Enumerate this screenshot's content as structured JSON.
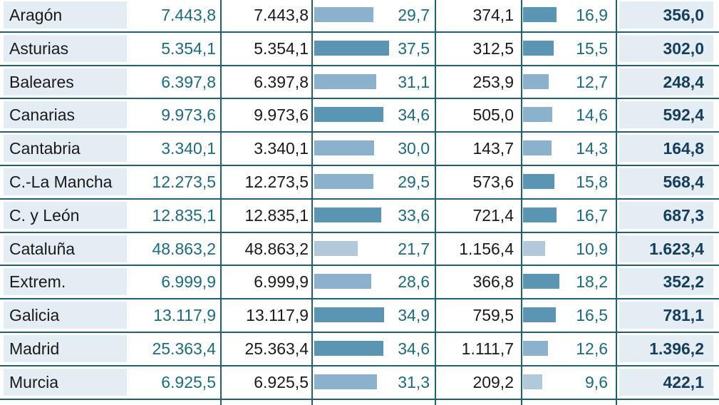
{
  "colors": {
    "rule": "#1f6075",
    "name_cell_bg": "#e4edf3",
    "bar_light": "#b2c9da",
    "bar_mid": "#8cb1cc",
    "bar_dark": "#5a96b4",
    "value_accent": "#1c6b7e",
    "total_text": "#163e5c"
  },
  "chart_data": {
    "type": "table",
    "columns": [
      "",
      "",
      "",
      "",
      "",
      "",
      ""
    ],
    "rows": [
      {
        "region": "Aragón",
        "v1": "7.443,8",
        "v2": "7.443,8",
        "pct1": 29.7,
        "pct1_label": "29,7",
        "v3": "374,1",
        "pct2": 16.9,
        "pct2_label": "16,9",
        "total": "356,0"
      },
      {
        "region": "Asturias",
        "v1": "5.354,1",
        "v2": "5.354,1",
        "pct1": 37.5,
        "pct1_label": "37,5",
        "v3": "312,5",
        "pct2": 15.5,
        "pct2_label": "15,5",
        "total": "302,0"
      },
      {
        "region": "Baleares",
        "v1": "6.397,8",
        "v2": "6.397,8",
        "pct1": 31.1,
        "pct1_label": "31,1",
        "v3": "253,9",
        "pct2": 12.7,
        "pct2_label": "12,7",
        "total": "248,4"
      },
      {
        "region": "Canarias",
        "v1": "9.973,6",
        "v2": "9.973,6",
        "pct1": 34.6,
        "pct1_label": "34,6",
        "v3": "505,0",
        "pct2": 14.6,
        "pct2_label": "14,6",
        "total": "592,4"
      },
      {
        "region": "Cantabria",
        "v1": "3.340,1",
        "v2": "3.340,1",
        "pct1": 30.0,
        "pct1_label": "30,0",
        "v3": "143,7",
        "pct2": 14.3,
        "pct2_label": "14,3",
        "total": "164,8"
      },
      {
        "region": "C.-La Mancha",
        "v1": "12.273,5",
        "v2": "12.273,5",
        "pct1": 29.5,
        "pct1_label": "29,5",
        "v3": "573,6",
        "pct2": 15.8,
        "pct2_label": "15,8",
        "total": "568,4"
      },
      {
        "region": "C. y León",
        "v1": "12.835,1",
        "v2": "12.835,1",
        "pct1": 33.6,
        "pct1_label": "33,6",
        "v3": "721,4",
        "pct2": 16.7,
        "pct2_label": "16,7",
        "total": "687,3"
      },
      {
        "region": "Cataluña",
        "v1": "48.863,2",
        "v2": "48.863,2",
        "pct1": 21.7,
        "pct1_label": "21,7",
        "v3": "1.156,4",
        "pct2": 10.9,
        "pct2_label": "10,9",
        "total": "1.623,4"
      },
      {
        "region": "Extrem.",
        "v1": "6.999,9",
        "v2": "6.999,9",
        "pct1": 28.6,
        "pct1_label": "28,6",
        "v3": "366,8",
        "pct2": 18.2,
        "pct2_label": "18,2",
        "total": "352,2"
      },
      {
        "region": "Galicia",
        "v1": "13.117,9",
        "v2": "13.117,9",
        "pct1": 34.9,
        "pct1_label": "34,9",
        "v3": "759,5",
        "pct2": 16.5,
        "pct2_label": "16,5",
        "total": "781,1"
      },
      {
        "region": "Madrid",
        "v1": "25.363,4",
        "v2": "25.363,4",
        "pct1": 34.6,
        "pct1_label": "34,6",
        "v3": "1.111,7",
        "pct2": 12.6,
        "pct2_label": "12,6",
        "total": "1.396,2"
      },
      {
        "region": "Murcia",
        "v1": "6.925,5",
        "v2": "6.925,5",
        "pct1": 31.3,
        "pct1_label": "31,3",
        "v3": "209,2",
        "pct2": 9.6,
        "pct2_label": "9,6",
        "total": "422,1"
      }
    ]
  }
}
